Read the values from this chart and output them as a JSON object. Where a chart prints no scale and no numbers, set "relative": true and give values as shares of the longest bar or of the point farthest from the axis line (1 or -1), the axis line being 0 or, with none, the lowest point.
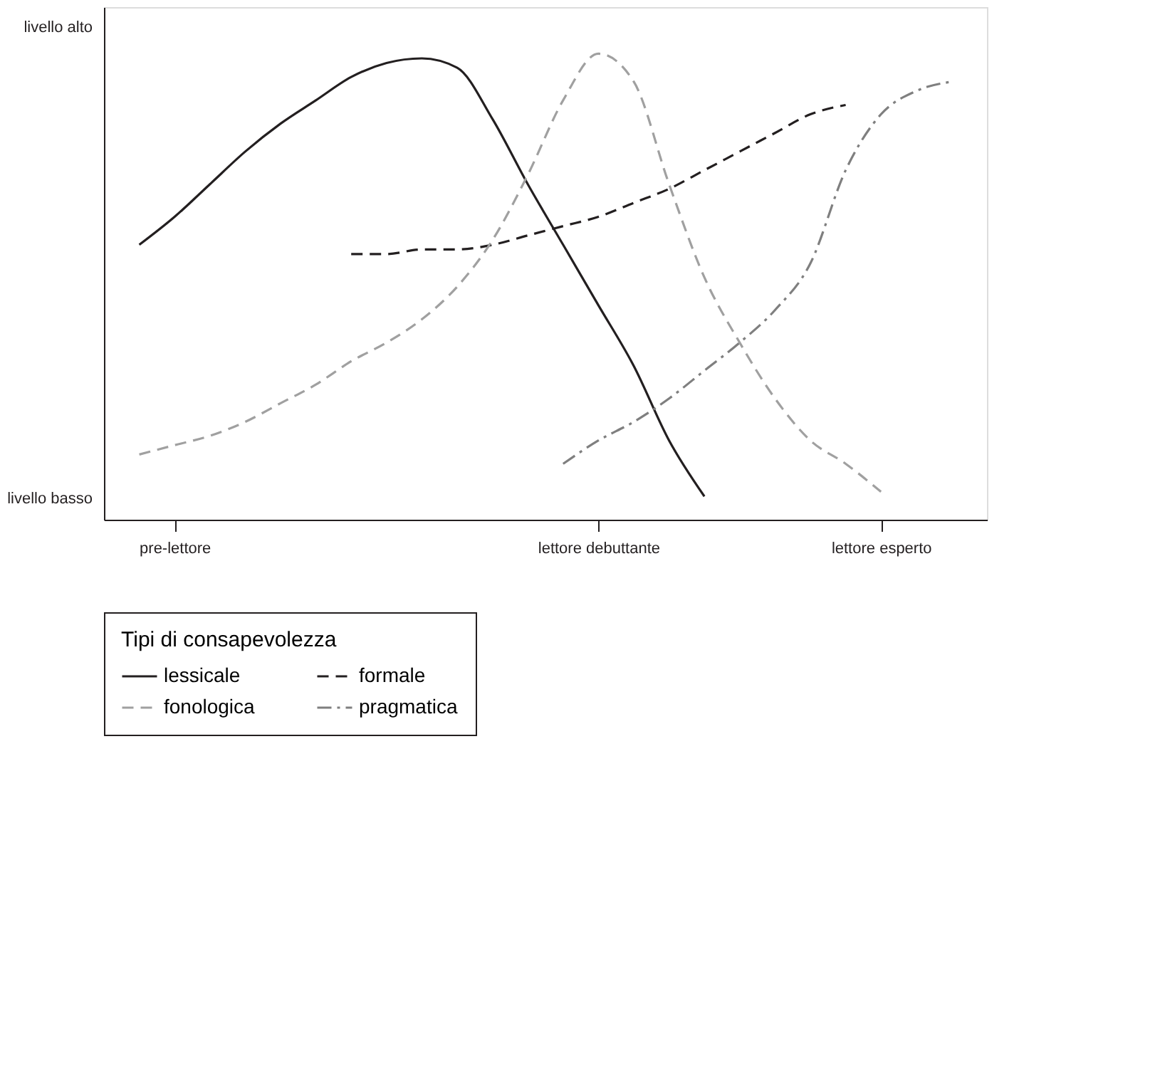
{
  "chart_data": {
    "type": "line",
    "relative": true,
    "legend_title": "Tipi di consapevolezza",
    "legend": "bottom",
    "grid": false,
    "marker": "none",
    "annotations": [
      "livello alto",
      "livello basso"
    ],
    "categories": [
      null,
      null,
      "pre-lettore",
      null,
      null,
      null,
      null,
      null,
      null,
      null,
      null,
      null,
      null,
      null,
      "lettore debuttante",
      null,
      null,
      null,
      null,
      null,
      null,
      null,
      "lettore esperto",
      null,
      null,
      null
    ],
    "series": [
      {
        "name": "lessicale",
        "color": "#231f20",
        "line_style": "solid",
        "values": [
          null,
          0.59,
          0.65,
          0.72,
          0.79,
          0.85,
          0.9,
          0.95,
          0.98,
          0.99,
          0.97,
          0.86,
          0.72,
          0.59,
          0.46,
          0.33,
          0.17,
          0.05,
          null,
          null,
          null,
          null,
          null,
          null,
          null,
          null
        ]
      },
      {
        "name": "formale",
        "color": "#231f20",
        "line_style": "dashed",
        "values": [
          null,
          null,
          null,
          null,
          null,
          null,
          null,
          0.57,
          0.57,
          0.58,
          0.58,
          0.59,
          0.61,
          0.63,
          0.65,
          0.68,
          0.71,
          0.75,
          0.79,
          0.83,
          0.87,
          0.89,
          null,
          null,
          null,
          null
        ]
      },
      {
        "name": "fonologica",
        "color": "#a0a0a0",
        "line_style": "dashed",
        "values": [
          null,
          0.14,
          0.16,
          0.18,
          0.21,
          0.25,
          0.29,
          0.34,
          0.38,
          0.43,
          0.5,
          0.6,
          0.74,
          0.9,
          1.0,
          0.94,
          0.72,
          0.52,
          0.38,
          0.26,
          0.17,
          0.12,
          0.06,
          null,
          null,
          null
        ]
      },
      {
        "name": "pragmatica",
        "color": "#7f7f7f",
        "line_style": "dashdot",
        "values": [
          null,
          null,
          null,
          null,
          null,
          null,
          null,
          null,
          null,
          null,
          null,
          null,
          null,
          0.12,
          0.17,
          0.21,
          0.26,
          0.32,
          0.38,
          0.45,
          0.55,
          0.75,
          0.87,
          0.92,
          0.94,
          null
        ]
      }
    ]
  }
}
